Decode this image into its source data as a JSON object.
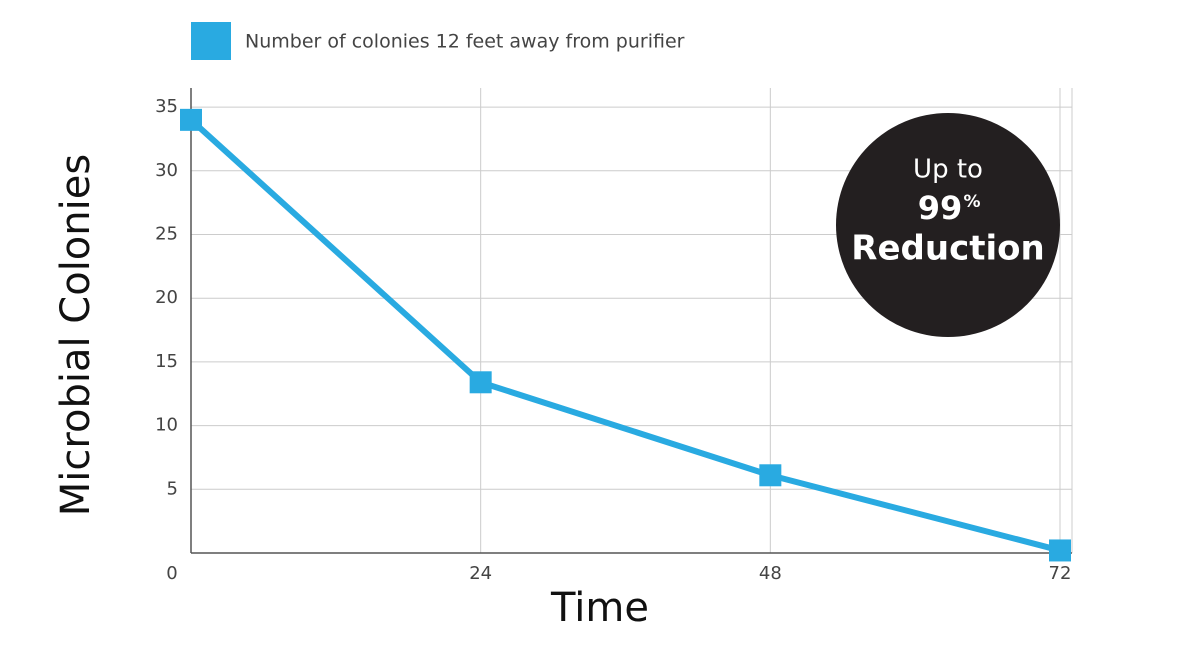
{
  "chart_data": {
    "type": "line",
    "series": [
      {
        "name": "Number of colonies 12 feet away from purifier",
        "color": "#29aae1",
        "values": [
          34,
          13.4,
          6.1,
          0.2
        ]
      }
    ],
    "x": [
      0,
      24,
      48,
      72
    ],
    "xlim": [
      0,
      72
    ],
    "xticks": [
      0,
      24,
      48,
      72
    ],
    "ylim": [
      0,
      36.5
    ],
    "yticks": [
      5,
      10,
      15,
      20,
      25,
      30,
      35
    ],
    "xlabel": "Time",
    "ylabel": "Microbial Colonies",
    "grid": true,
    "annotation": {
      "line1": "Up to",
      "value": "99",
      "unit": "%",
      "line2": "Reduction"
    }
  }
}
